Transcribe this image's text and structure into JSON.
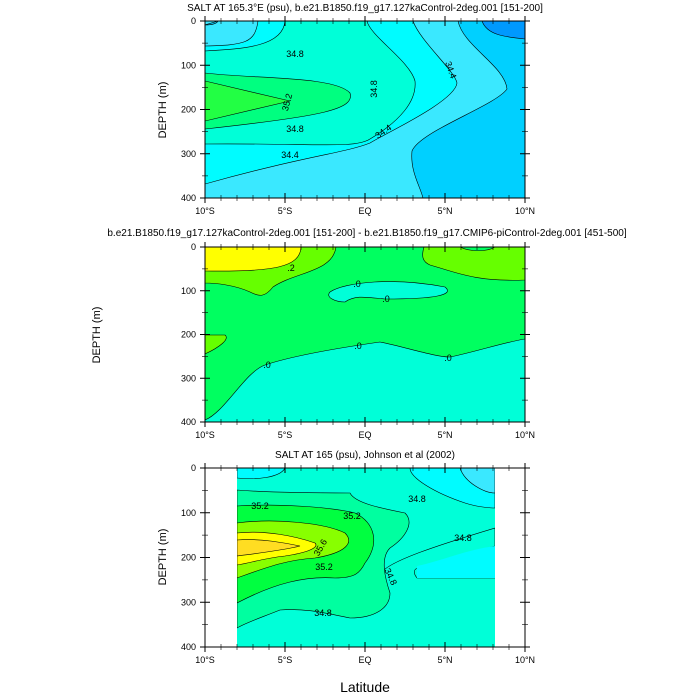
{
  "chart_data": [
    {
      "type": "contour",
      "title": "SALT AT 165.3°E (psu), b.e21.B1850.f19_g17.127kaControl-2deg.001 [151-200]",
      "ylabel": "DEPTH (m)",
      "xlabel": "",
      "x_ticks": [
        "10°S",
        "5°S",
        "EQ",
        "5°N",
        "10°N"
      ],
      "xlim": [
        -10,
        10
      ],
      "y_ticks": [
        "0",
        "100",
        "200",
        "300",
        "400"
      ],
      "ylim": [
        400,
        0
      ],
      "contour_labels": [
        "34.8",
        "35.2",
        "34.8",
        "34.4",
        "34.8",
        "34.4",
        "34.4"
      ]
    },
    {
      "type": "contour",
      "title": "b.e21.B1850.f19_g17.127kaControl-2deg.001 [151-200] - b.e21.B1850.f19_g17.CMIP6-piControl-2deg.001 [451-500]",
      "ylabel": "DEPTH (m)",
      "xlabel": "",
      "x_ticks": [
        "10°S",
        "5°S",
        "EQ",
        "5°N",
        "10°N"
      ],
      "xlim": [
        -10,
        10
      ],
      "y_ticks": [
        "0",
        "100",
        "200",
        "300",
        "400"
      ],
      "ylim": [
        400,
        0
      ],
      "contour_labels": [
        ".2",
        ".0",
        ".0",
        ".0",
        ".0",
        ".0"
      ]
    },
    {
      "type": "contour",
      "title": "SALT AT 165 (psu), Johnson et al (2002)",
      "ylabel": "DEPTH (m)",
      "xlabel": "Latitude",
      "x_ticks": [
        "10°S",
        "5°S",
        "EQ",
        "5°N",
        "10°N"
      ],
      "xlim": [
        -10,
        10
      ],
      "y_ticks": [
        "0",
        "100",
        "200",
        "300",
        "400"
      ],
      "ylim": [
        400,
        0
      ],
      "contour_labels": [
        "35.2",
        "35.2",
        "34.8",
        "34.8",
        "35.6",
        "35.2",
        "34.8",
        "34.8"
      ]
    }
  ],
  "colors": {
    "deep_blue": "#0099ff",
    "blue": "#00d0ff",
    "light_cyan": "#3ae8ff",
    "cyan": "#00fcff",
    "aqua": "#00ffd8",
    "green": "#00ff60",
    "lime": "#66ff00",
    "yellow": "#ffff00",
    "gold": "#ffdd22"
  }
}
